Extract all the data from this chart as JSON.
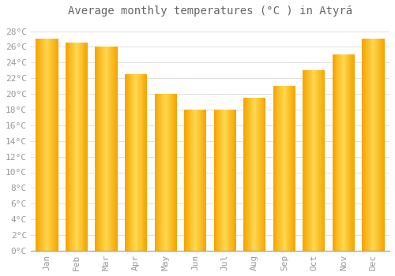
{
  "title": "Average monthly temperatures (°C ) in Atyrá",
  "months": [
    "Jan",
    "Feb",
    "Mar",
    "Apr",
    "May",
    "Jun",
    "Jul",
    "Aug",
    "Sep",
    "Oct",
    "Nov",
    "Dec"
  ],
  "values": [
    27.0,
    26.5,
    26.0,
    22.5,
    20.0,
    18.0,
    18.0,
    19.5,
    21.0,
    23.0,
    25.0,
    27.0
  ],
  "bar_color_edge": "#F5A400",
  "bar_color_center": "#FFD850",
  "ylim": [
    0,
    29
  ],
  "yticks": [
    0,
    2,
    4,
    6,
    8,
    10,
    12,
    14,
    16,
    18,
    20,
    22,
    24,
    26,
    28
  ],
  "ytick_labels": [
    "0°C",
    "2°C",
    "4°C",
    "6°C",
    "8°C",
    "10°C",
    "12°C",
    "14°C",
    "16°C",
    "18°C",
    "20°C",
    "22°C",
    "24°C",
    "26°C",
    "28°C"
  ],
  "background_color": "#FFFFFF",
  "grid_color": "#E0E0E0",
  "title_fontsize": 10,
  "tick_fontsize": 8,
  "tick_color": "#999999",
  "font_family": "monospace",
  "bar_width": 0.75
}
